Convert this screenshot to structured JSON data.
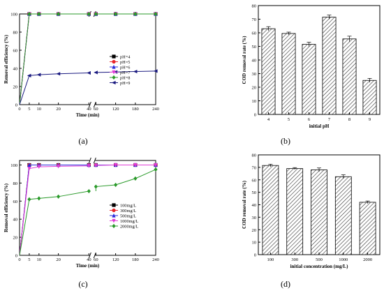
{
  "panels": [
    {
      "label": "(a)",
      "chart_data": {
        "type": "line",
        "xlabel": "Time (min)",
        "ylabel": "Removal efficiency (%)",
        "x_ticks": [
          "0",
          "5",
          "10",
          "20",
          "40",
          "60",
          "120",
          "180",
          "240"
        ],
        "ylim": [
          0,
          100
        ],
        "y_ticks": [
          "0",
          "20",
          "40",
          "60",
          "80",
          "100"
        ],
        "legend_position": "right",
        "series": [
          {
            "name": "pH=4",
            "color": "#000000",
            "marker": "square",
            "values": [
              0,
              100,
              100,
              100,
              100,
              100,
              100,
              100,
              100
            ]
          },
          {
            "name": "pH=5",
            "color": "#e8262b",
            "marker": "circle",
            "values": [
              0,
              100,
              100,
              100,
              100,
              100,
              100,
              100,
              100
            ]
          },
          {
            "name": "pH=6",
            "color": "#2b2bdc",
            "marker": "triangle",
            "values": [
              0,
              100,
              100,
              100,
              100,
              100,
              100,
              100,
              100
            ]
          },
          {
            "name": "pH=7",
            "color": "#e03ad7",
            "marker": "triangle-down",
            "values": [
              0,
              100,
              100,
              100,
              100,
              100,
              100,
              100,
              100
            ]
          },
          {
            "name": "pH=8",
            "color": "#2a9a2a",
            "marker": "diamond",
            "values": [
              0,
              100,
              100,
              100,
              100,
              100,
              100,
              100,
              100
            ]
          },
          {
            "name": "pH=9",
            "color": "#1a1a80",
            "marker": "triangle-left",
            "values": [
              0,
              32,
              33,
              34,
              35,
              35.5,
              36,
              36.5,
              37
            ]
          }
        ]
      }
    },
    {
      "label": "(b)",
      "chart_data": {
        "type": "bar",
        "xlabel": "initial pH",
        "ylabel": "COD removal rate (%)",
        "categories": [
          "4",
          "5",
          "6",
          "7",
          "8",
          "9"
        ],
        "values": [
          63,
          59.5,
          51.5,
          71.5,
          55.5,
          25
        ],
        "errors": [
          1.5,
          1,
          1.5,
          1.5,
          2,
          1.5
        ],
        "ylim": [
          0,
          80
        ],
        "y_ticks": [
          "0",
          "10",
          "20",
          "30",
          "40",
          "50",
          "60",
          "70",
          "80"
        ],
        "pattern": "hatched"
      }
    },
    {
      "label": "(c)",
      "chart_data": {
        "type": "line",
        "xlabel": "Time (min)",
        "ylabel": "Removal efficiency (%)",
        "x_ticks": [
          "0",
          "5",
          "10",
          "20",
          "40",
          "60",
          "120",
          "180",
          "240"
        ],
        "ylim": [
          0,
          105
        ],
        "y_ticks": [
          "0",
          "20",
          "40",
          "60",
          "80",
          "100"
        ],
        "legend_position": "right",
        "series": [
          {
            "name": "100mg/L",
            "color": "#000000",
            "marker": "square",
            "values": [
              0,
              100,
              100,
              100,
              100,
              100,
              100,
              100,
              100
            ]
          },
          {
            "name": "300mg/L",
            "color": "#e8262b",
            "marker": "circle",
            "values": [
              0,
              100,
              100,
              100,
              100,
              100,
              100,
              100,
              100
            ]
          },
          {
            "name": "500mg/L",
            "color": "#2b2bdc",
            "marker": "triangle",
            "values": [
              0,
              100,
              100,
              100,
              100,
              100,
              100,
              100,
              100
            ]
          },
          {
            "name": "1000mg/L",
            "color": "#e03ad7",
            "marker": "triangle-down",
            "values": [
              0,
              96,
              98,
              98.5,
              99,
              99.5,
              100,
              100,
              100
            ]
          },
          {
            "name": "2000mg/L",
            "color": "#2a9a2a",
            "marker": "diamond",
            "values": [
              0,
              62,
              63,
              65,
              71,
              76,
              78,
              85,
              95
            ]
          }
        ]
      }
    },
    {
      "label": "(d)",
      "chart_data": {
        "type": "bar",
        "xlabel": "initial concentration (mg/L)",
        "ylabel": "COD removal rate (%)",
        "categories": [
          "100",
          "300",
          "500",
          "1000",
          "2000"
        ],
        "values": [
          71.5,
          69,
          68,
          62.5,
          42
        ],
        "errors": [
          1,
          0.8,
          1.5,
          1.5,
          1
        ],
        "ylim": [
          0,
          80
        ],
        "y_ticks": [
          "0",
          "10",
          "20",
          "30",
          "40",
          "50",
          "60",
          "70",
          "80"
        ],
        "pattern": "hatched"
      }
    }
  ]
}
